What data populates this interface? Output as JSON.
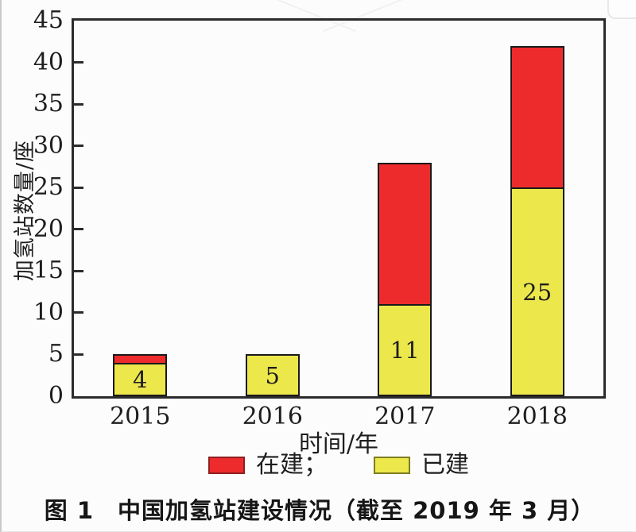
{
  "figure": {
    "caption": "图 1　中国加氢站建设情况（截至 2019 年 3 月）"
  },
  "chart_data": {
    "type": "bar",
    "stacked": true,
    "title": "",
    "xlabel": "时间/年",
    "ylabel": "加氢站数量/座",
    "categories": [
      "2015",
      "2016",
      "2017",
      "2018"
    ],
    "series": [
      {
        "name": "已建",
        "values": [
          4,
          5,
          11,
          25
        ],
        "color": "#ece74b"
      },
      {
        "name": "在建",
        "values": [
          1,
          0,
          17,
          17
        ],
        "color": "#ee2b2c"
      }
    ],
    "stack_totals": [
      5,
      5,
      28,
      42
    ],
    "value_labels_series": "已建",
    "value_labels": [
      "4",
      "5",
      "11",
      "25"
    ],
    "ylim": [
      0,
      45
    ],
    "ytick_step": 5,
    "yticks": [
      0,
      5,
      10,
      15,
      20,
      25,
      30,
      35,
      40,
      45
    ],
    "grid": false,
    "legend_position": "bottom",
    "legend": [
      {
        "label": "在建；",
        "color": "#ee2b2c",
        "border": "#8e1f1f"
      },
      {
        "label": "已建",
        "color": "#ece74b",
        "border": "#7d7d22"
      }
    ],
    "colors": {
      "axis": "#2b2b2b",
      "text": "#1e1e1e",
      "bar_border": "#1a1a1a"
    }
  }
}
